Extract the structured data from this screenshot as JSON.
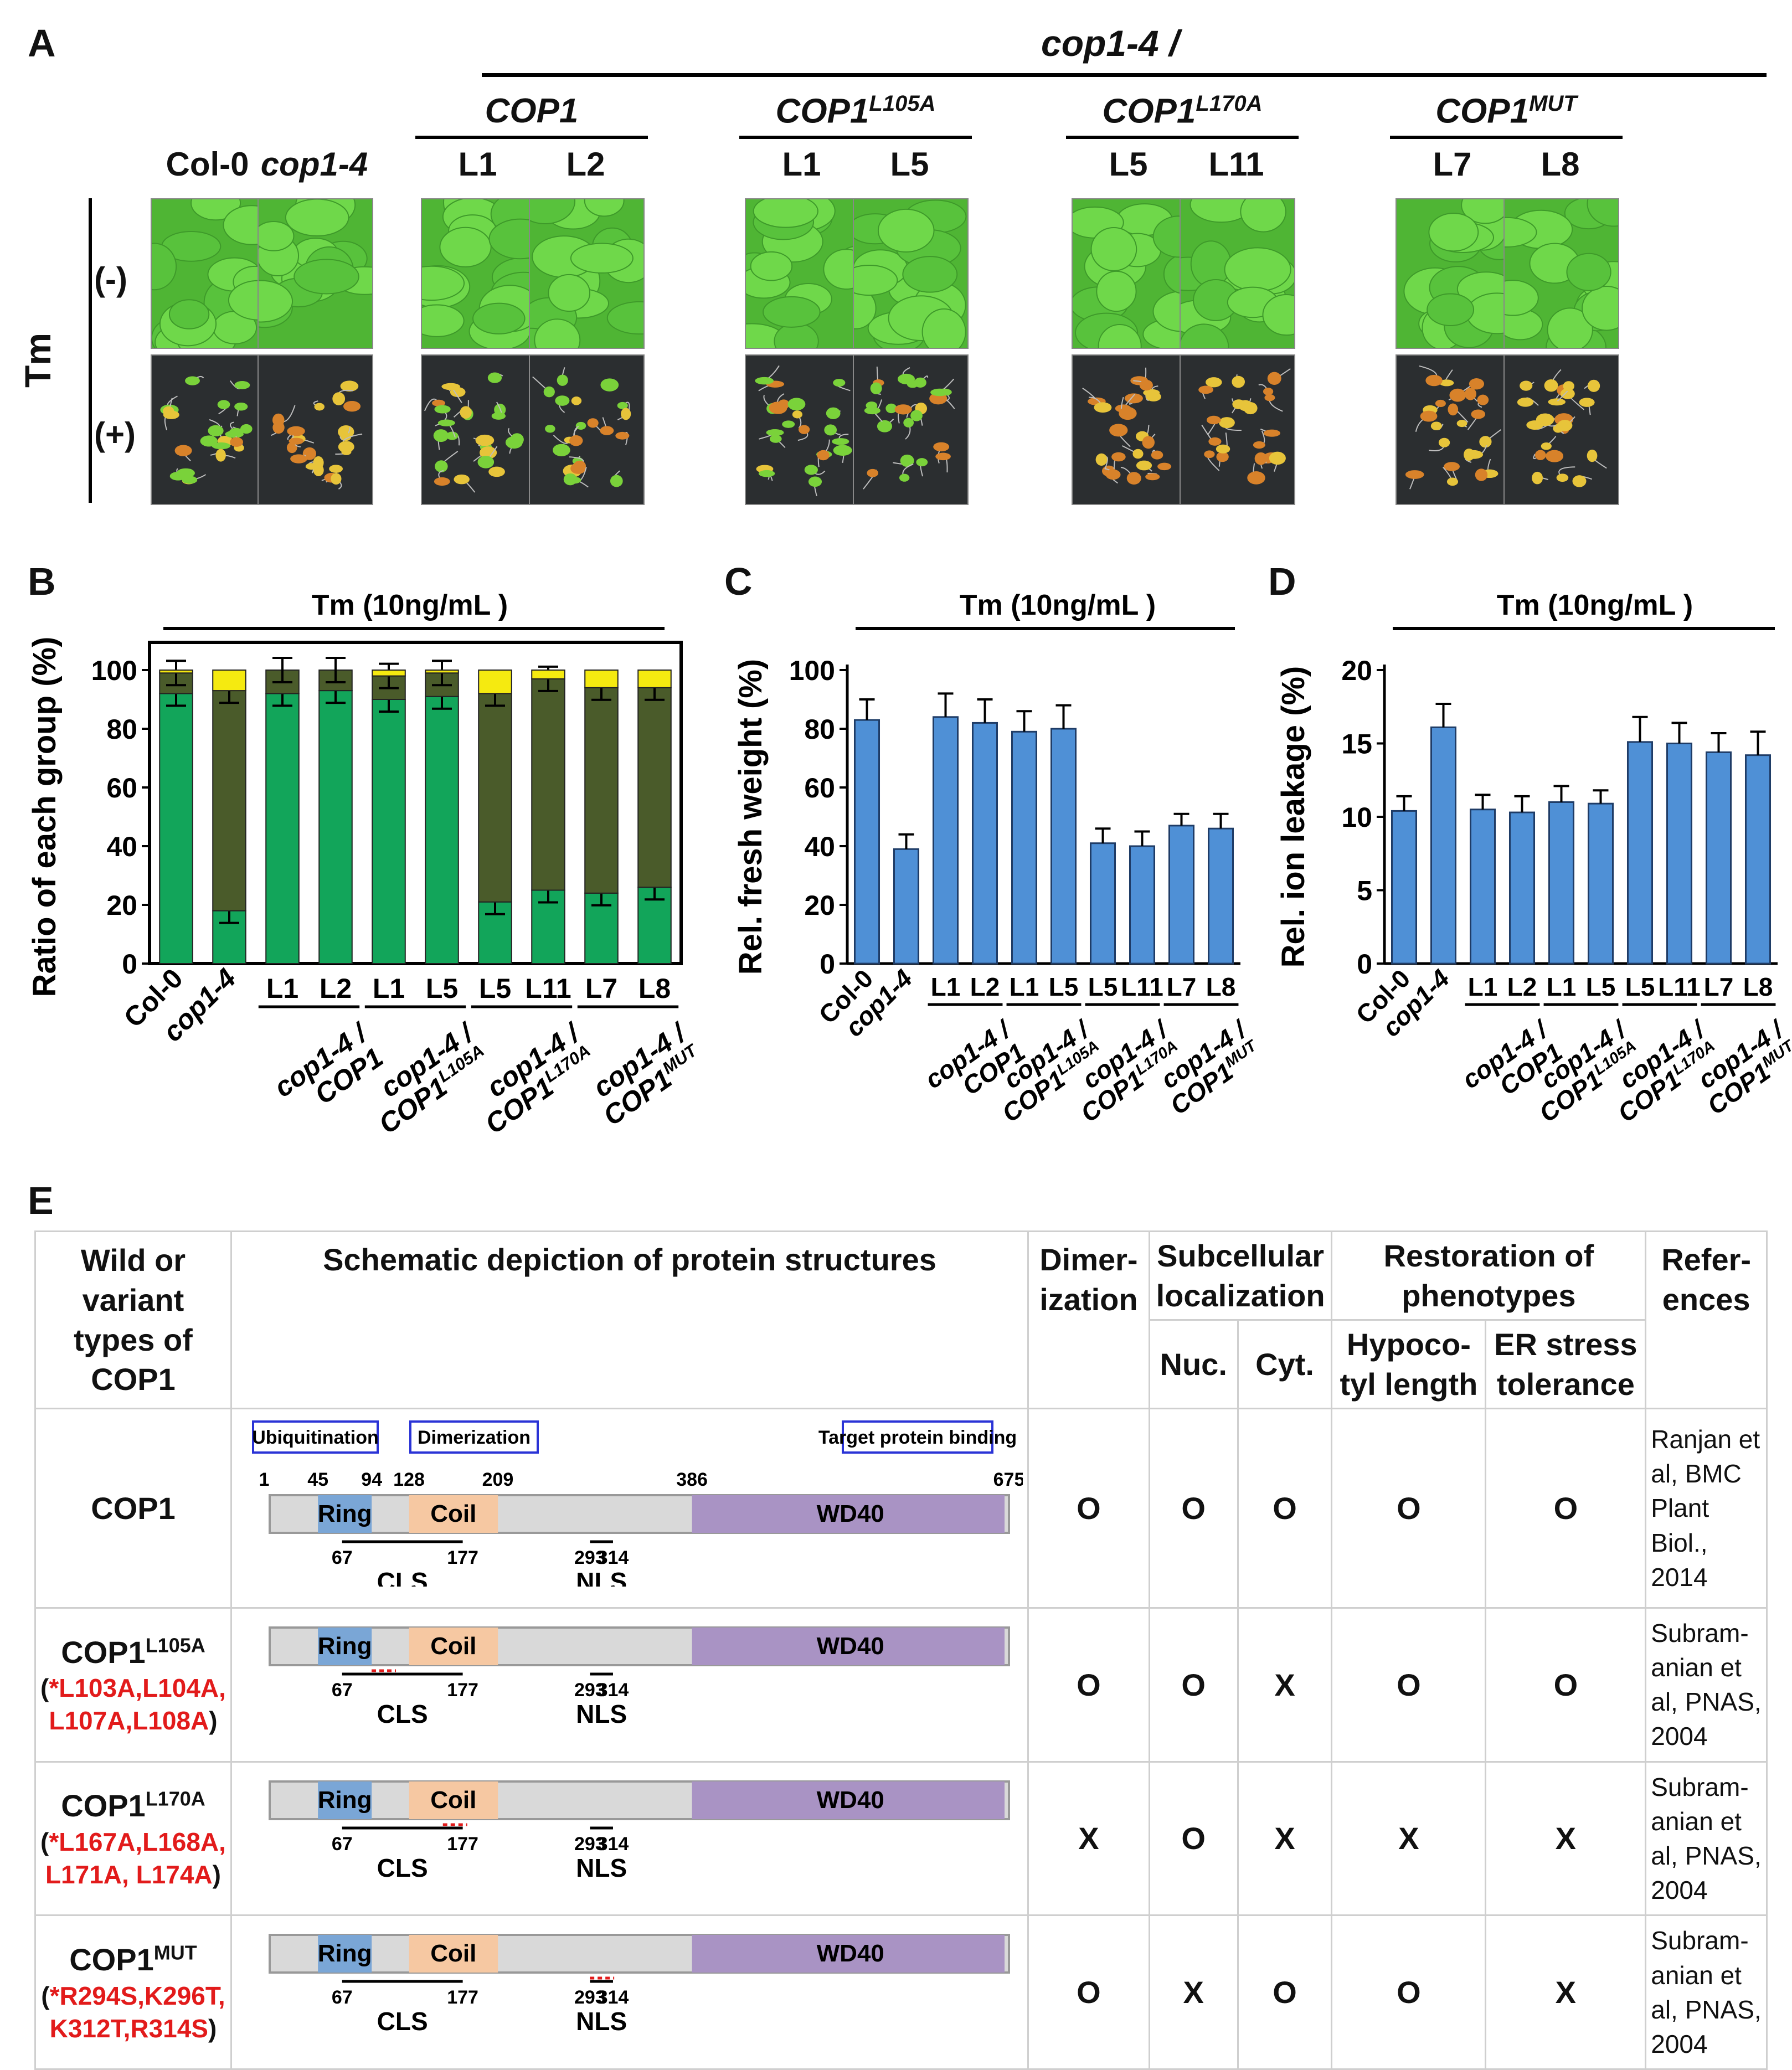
{
  "panelA": {
    "label": "A",
    "header": "cop1-4 /",
    "groups": [
      "COP1",
      "COP1",
      "COP1",
      "COP1"
    ],
    "group_sups": [
      "",
      "L105A",
      "L170A",
      "MUT"
    ],
    "columns": [
      "Col-0",
      "cop1-4",
      "L1",
      "L2",
      "L1",
      "L5",
      "L5",
      "L11",
      "L7",
      "L8"
    ],
    "row_axis": "Tm",
    "rows": [
      "(-)",
      "(+)"
    ],
    "colors": {
      "healthy": "#5fc83a",
      "stressed_bg": "#2b2e30",
      "yellow": "#e7c43a",
      "orange": "#d8822a"
    }
  },
  "panelB": {
    "label": "B"
  },
  "panelC": {
    "label": "C"
  },
  "panelD": {
    "label": "D"
  },
  "xlabels": {
    "top": [
      "Col-0",
      "cop1-4",
      "L1",
      "L2",
      "L1",
      "L5",
      "L5",
      "L11",
      "L7",
      "L8"
    ],
    "groups": [
      "cop1-4 /",
      "cop1-4 /",
      "cop1-4 /",
      "cop1-4 /"
    ],
    "group_genes": [
      "COP1",
      "COP1",
      "COP1",
      "COP1"
    ],
    "group_sups": [
      "",
      "L105A",
      "L170A",
      "MUT"
    ]
  },
  "chart_data": [
    {
      "type": "bar",
      "title": "Tm (10ng/mL )",
      "ylabel": "Ratio of each group (%)",
      "ylim": [
        0,
        100
      ],
      "yticks": [
        0,
        20,
        40,
        60,
        80,
        100
      ],
      "categories": [
        "Col-0",
        "cop1-4",
        "L1",
        "L2",
        "L1",
        "L5",
        "L5",
        "L11",
        "L7",
        "L8"
      ],
      "stacked": true,
      "series": [
        {
          "color": "#12a55a",
          "values": [
            92,
            18,
            92,
            93,
            90,
            91,
            21,
            25,
            24,
            26
          ]
        },
        {
          "color": "#4a5b2a",
          "values": [
            7,
            75,
            8,
            7,
            8,
            8,
            71,
            72,
            70,
            68
          ]
        },
        {
          "color": "#f5ea10",
          "values": [
            1,
            7,
            0,
            0,
            2,
            1,
            8,
            3,
            6,
            6
          ]
        }
      ]
    },
    {
      "type": "bar",
      "title": "Tm (10ng/mL )",
      "ylabel": "Rel. fresh weight (%)",
      "ylim": [
        0,
        100
      ],
      "yticks": [
        0,
        20,
        40,
        60,
        80,
        100
      ],
      "categories": [
        "Col-0",
        "cop1-4",
        "L1",
        "L2",
        "L1",
        "L5",
        "L5",
        "L11",
        "L7",
        "L8"
      ],
      "values": [
        83,
        39,
        84,
        82,
        79,
        80,
        41,
        40,
        47,
        46
      ],
      "errors": [
        7,
        5,
        8,
        8,
        7,
        8,
        5,
        5,
        4,
        5
      ],
      "color": "#4f90d6"
    },
    {
      "type": "bar",
      "title": "Tm (10ng/mL )",
      "ylabel": "Rel. ion leakage (%)",
      "ylim": [
        0,
        20
      ],
      "yticks": [
        0,
        5,
        10,
        15,
        20
      ],
      "categories": [
        "Col-0",
        "cop1-4",
        "L1",
        "L2",
        "L1",
        "L5",
        "L5",
        "L11",
        "L7",
        "L8"
      ],
      "values": [
        10.4,
        16.1,
        10.5,
        10.3,
        11.0,
        10.9,
        15.1,
        15.0,
        14.4,
        14.2
      ],
      "errors": [
        1.0,
        1.6,
        1.0,
        1.1,
        1.1,
        0.9,
        1.7,
        1.4,
        1.3,
        1.6
      ],
      "color": "#4f90d6"
    }
  ],
  "panelE": {
    "label": "E",
    "headers": {
      "type": "Wild or variant types of COP1",
      "schematic": "Schematic depiction of protein structures",
      "dimer": "Dimer- ization",
      "subcell": "Subcellular localization",
      "nuc": "Nuc.",
      "cyt": "Cyt.",
      "restoration": "Restoration of phenotypes",
      "hypo": "Hypoco- tyl length",
      "er": "ER stress tolerance",
      "refs": "Refer- ences"
    },
    "domain_boxes": [
      "Ubiquitination",
      "Dimerization",
      "Target protein binding"
    ],
    "positions": [
      "1",
      "45",
      "94",
      "128",
      "209",
      "386",
      "675"
    ],
    "domains": [
      "Ring",
      "Coil",
      "WD40"
    ],
    "cls": {
      "label": "CLS",
      "start": "67",
      "end": "177"
    },
    "nls": {
      "label": "NLS",
      "start": "293",
      "end": "314"
    },
    "rows": [
      {
        "name": "COP1",
        "sup": "",
        "mutations": "",
        "marks": [
          "O",
          "O",
          "O",
          "O",
          "O"
        ],
        "ref": "Ranjan et al, BMC Plant Biol., 2014"
      },
      {
        "name": "COP1",
        "sup": "L105A",
        "mutations": "*L103A,L104A, L107A,L108A",
        "marks": [
          "O",
          "O",
          "X",
          "O",
          "O"
        ],
        "ref": "Subram- anian et al, PNAS, 2004"
      },
      {
        "name": "COP1",
        "sup": "L170A",
        "mutations": "*L167A,L168A, L171A, L174A",
        "marks": [
          "X",
          "O",
          "X",
          "X",
          "X"
        ],
        "ref": "Subram- anian et al, PNAS, 2004"
      },
      {
        "name": "COP1",
        "sup": "MUT",
        "mutations": "*R294S,K296T, K312T,R314S",
        "marks": [
          "O",
          "X",
          "O",
          "O",
          "X"
        ],
        "ref": "Subram- anian et al, PNAS, 2004"
      }
    ]
  }
}
